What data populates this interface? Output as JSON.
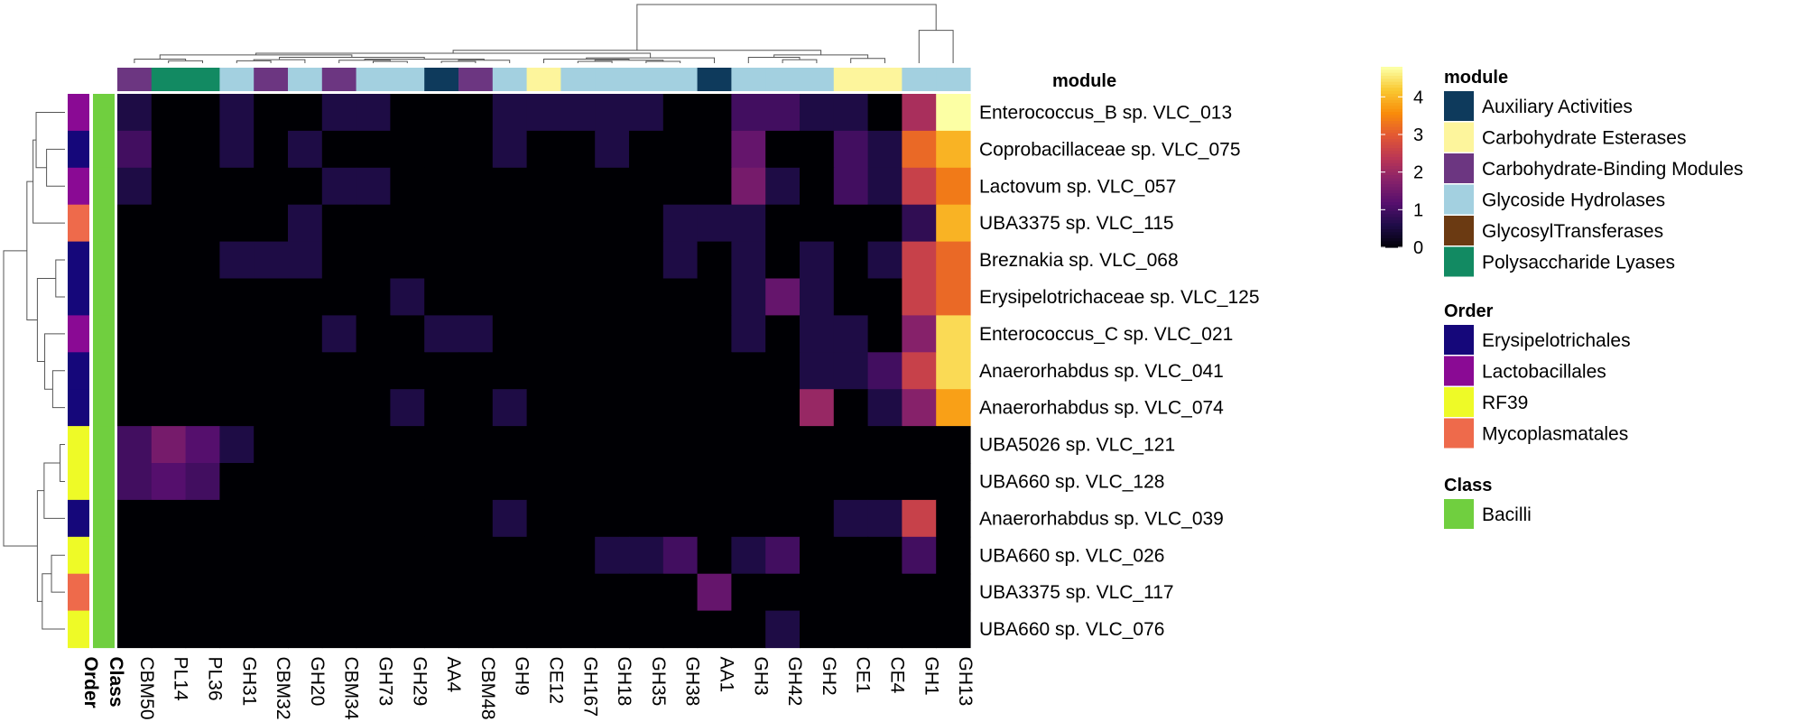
{
  "chart_data": {
    "type": "heatmap",
    "title": "",
    "columns": [
      "CBM50",
      "PL14",
      "PL36",
      "GH31",
      "CBM32",
      "GH20",
      "CBM34",
      "GH73",
      "GH29",
      "AA4",
      "CBM48",
      "GH9",
      "CE12",
      "GH167",
      "GH18",
      "GH35",
      "GH38",
      "AA1",
      "GH3",
      "GH42",
      "GH2",
      "CE1",
      "CE4",
      "GH1",
      "GH13"
    ],
    "rows": [
      "Enterococcus_B sp. VLC_013",
      "Coprobacillaceae sp. VLC_075",
      "Lactovum sp. VLC_057",
      "UBA3375 sp. VLC_115",
      "Breznakia sp. VLC_068",
      "Erysipelotrichaceae sp. VLC_125",
      "Enterococcus_C sp. VLC_021",
      "Anaerorhabdus sp. VLC_041",
      "Anaerorhabdus sp. VLC_074",
      "UBA5026 sp. VLC_121",
      "UBA660 sp. VLC_128",
      "Anaerorhabdus sp. VLC_039",
      "UBA660 sp. VLC_026",
      "UBA3375 sp. VLC_117",
      "UBA660 sp. VLC_076"
    ],
    "values": [
      [
        0.6,
        0,
        0,
        0.6,
        0,
        0,
        0.6,
        0.6,
        0,
        0,
        0,
        0.6,
        0.6,
        0.6,
        0.6,
        0.6,
        0,
        0,
        1,
        1,
        0.6,
        0.6,
        0,
        2.2,
        4.8
      ],
      [
        1,
        0,
        0,
        0.6,
        0,
        0.6,
        0,
        0,
        0,
        0,
        0,
        0.6,
        0,
        0,
        0.6,
        0,
        0,
        0,
        1.4,
        0,
        0,
        1,
        0.6,
        3.2,
        4
      ],
      [
        0.6,
        0,
        0,
        0,
        0,
        0,
        0.6,
        0.6,
        0,
        0,
        0,
        0,
        0,
        0,
        0,
        0,
        0,
        0,
        1.6,
        0.6,
        0,
        1,
        0.6,
        2.6,
        3.4
      ],
      [
        0,
        0,
        0,
        0,
        0,
        0.6,
        0,
        0,
        0,
        0,
        0,
        0,
        0,
        0,
        0,
        0,
        0.6,
        0.6,
        0.6,
        0,
        0,
        0,
        0,
        0.8,
        4
      ],
      [
        0,
        0,
        0,
        0.6,
        0.6,
        0.6,
        0,
        0,
        0,
        0,
        0,
        0,
        0,
        0,
        0,
        0,
        0.6,
        0,
        0.6,
        0,
        0.6,
        0,
        0.6,
        2.6,
        3.2
      ],
      [
        0,
        0,
        0,
        0,
        0,
        0,
        0,
        0,
        0.6,
        0,
        0,
        0,
        0,
        0,
        0,
        0,
        0,
        0,
        0.6,
        1.4,
        0.6,
        0,
        0,
        2.6,
        3.2
      ],
      [
        0,
        0,
        0,
        0,
        0,
        0,
        0.6,
        0,
        0,
        0.6,
        0.6,
        0,
        0,
        0,
        0,
        0,
        0,
        0,
        0.6,
        0,
        0.6,
        0.6,
        0,
        1.8,
        4.4
      ],
      [
        0,
        0,
        0,
        0,
        0,
        0,
        0,
        0,
        0,
        0,
        0,
        0,
        0,
        0,
        0,
        0,
        0,
        0,
        0,
        0,
        0.6,
        0.6,
        1,
        2.6,
        4.4
      ],
      [
        0,
        0,
        0,
        0,
        0,
        0,
        0,
        0,
        0.6,
        0,
        0,
        0.6,
        0,
        0,
        0,
        0,
        0,
        0,
        0,
        0,
        2,
        0,
        0.6,
        1.8,
        3.8
      ],
      [
        1,
        1.6,
        1.2,
        0.6,
        0,
        0,
        0,
        0,
        0,
        0,
        0,
        0,
        0,
        0,
        0,
        0,
        0,
        0,
        0,
        0,
        0,
        0,
        0,
        0,
        0
      ],
      [
        1,
        1.2,
        1,
        0,
        0,
        0,
        0,
        0,
        0,
        0,
        0,
        0,
        0,
        0,
        0,
        0,
        0,
        0,
        0,
        0,
        0,
        0,
        0,
        0,
        0
      ],
      [
        0,
        0,
        0,
        0,
        0,
        0,
        0,
        0,
        0,
        0,
        0,
        0.6,
        0,
        0,
        0,
        0,
        0,
        0,
        0,
        0,
        0,
        0.6,
        0.6,
        2.6,
        0
      ],
      [
        0,
        0,
        0,
        0,
        0,
        0,
        0,
        0,
        0,
        0,
        0,
        0,
        0,
        0,
        0.6,
        0.6,
        1,
        0,
        0.6,
        1,
        0,
        0,
        0,
        1,
        0
      ],
      [
        0,
        0,
        0,
        0,
        0,
        0,
        0,
        0,
        0,
        0,
        0,
        0,
        0,
        0,
        0,
        0,
        0,
        1.4,
        0,
        0,
        0,
        0,
        0,
        0,
        0
      ],
      [
        0,
        0,
        0,
        0,
        0,
        0,
        0,
        0,
        0,
        0,
        0,
        0,
        0,
        0,
        0,
        0,
        0,
        0,
        0,
        0.6,
        0,
        0,
        0,
        0,
        0
      ]
    ],
    "column_annotation": {
      "name": "module",
      "values": [
        "Carbohydrate-Binding Modules",
        "Polysaccharide Lyases",
        "Polysaccharide Lyases",
        "Glycoside Hydrolases",
        "Carbohydrate-Binding Modules",
        "Glycoside Hydrolases",
        "Carbohydrate-Binding Modules",
        "Glycoside Hydrolases",
        "Glycoside Hydrolases",
        "Auxiliary Activities",
        "Carbohydrate-Binding Modules",
        "Glycoside Hydrolases",
        "Carbohydrate Esterases",
        "Glycoside Hydrolases",
        "Glycoside Hydrolases",
        "Glycoside Hydrolases",
        "Glycoside Hydrolases",
        "Auxiliary Activities",
        "Glycoside Hydrolases",
        "Glycoside Hydrolases",
        "Glycoside Hydrolases",
        "Carbohydrate Esterases",
        "Carbohydrate Esterases",
        "Glycoside Hydrolases",
        "Glycoside Hydrolases"
      ]
    },
    "row_annotations": [
      {
        "name": "Order",
        "values": [
          "Lactobacillales",
          "Erysipelotrichales",
          "Lactobacillales",
          "Mycoplasmatales",
          "Erysipelotrichales",
          "Erysipelotrichales",
          "Lactobacillales",
          "Erysipelotrichales",
          "Erysipelotrichales",
          "RF39",
          "RF39",
          "Erysipelotrichales",
          "RF39",
          "Mycoplasmatales",
          "RF39"
        ]
      },
      {
        "name": "Class",
        "values": [
          "Bacilli",
          "Bacilli",
          "Bacilli",
          "Bacilli",
          "Bacilli",
          "Bacilli",
          "Bacilli",
          "Bacilli",
          "Bacilli",
          "Bacilli",
          "Bacilli",
          "Bacilli",
          "Bacilli",
          "Bacilli",
          "Bacilli"
        ]
      }
    ],
    "color_scale": {
      "ticks": [
        0,
        1,
        2,
        3,
        4
      ],
      "min": 0,
      "max": 4.8,
      "palette": "inferno"
    },
    "legends": [
      {
        "title": "module",
        "items": [
          {
            "label": "Auxiliary Activities",
            "color": "#0e3a5c"
          },
          {
            "label": "Carbohydrate Esterases",
            "color": "#fdf59c"
          },
          {
            "label": "Carbohydrate-Binding Modules",
            "color": "#6c3681"
          },
          {
            "label": "Glycoside Hydrolases",
            "color": "#a3d0e0"
          },
          {
            "label": "GlycosylTransferases",
            "color": "#6b3a12"
          },
          {
            "label": "Polysaccharide Lyases",
            "color": "#128a62"
          }
        ]
      },
      {
        "title": "Order",
        "items": [
          {
            "label": "Erysipelotrichales",
            "color": "#15077a"
          },
          {
            "label": "Lactobacillales",
            "color": "#8a0a94"
          },
          {
            "label": "RF39",
            "color": "#eefa27"
          },
          {
            "label": "Mycoplasmatales",
            "color": "#ee6a4b"
          }
        ]
      },
      {
        "title": "Class",
        "items": [
          {
            "label": "Bacilli",
            "color": "#70cf3f"
          }
        ]
      }
    ],
    "grid": false,
    "legend_position": "right"
  }
}
